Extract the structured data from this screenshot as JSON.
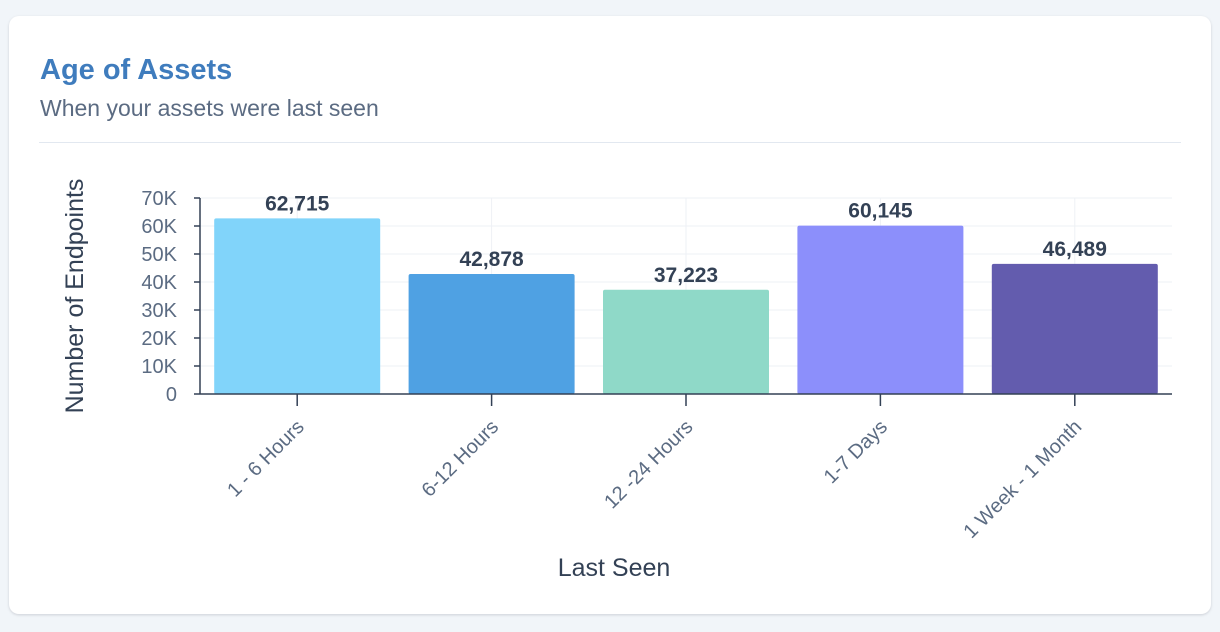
{
  "card": {
    "title": "Age of Assets",
    "subtitle": "When your assets were last seen"
  },
  "chart_data": {
    "type": "bar",
    "categories": [
      "1 - 6 Hours",
      "6-12 Hours",
      "12 -24 Hours",
      "1-7 Days",
      "1 Week - 1 Month"
    ],
    "values": [
      62715,
      42878,
      37223,
      60145,
      46489
    ],
    "value_labels": [
      "62,715",
      "42,878",
      "37,223",
      "60,145",
      "46,489"
    ],
    "colors": [
      "#81d4fa",
      "#4fa1e3",
      "#8fd9c8",
      "#8c8ffb",
      "#635cae"
    ],
    "xlabel": "Last Seen",
    "ylabel": "Number of Endpoints",
    "ylim": [
      0,
      70000
    ],
    "y_ticks": [
      0,
      10000,
      20000,
      30000,
      40000,
      50000,
      60000,
      70000
    ],
    "y_tick_labels": [
      "0",
      "10K",
      "20K",
      "30K",
      "40K",
      "50K",
      "60K",
      "70K"
    ],
    "grid": true,
    "legend": "none"
  }
}
